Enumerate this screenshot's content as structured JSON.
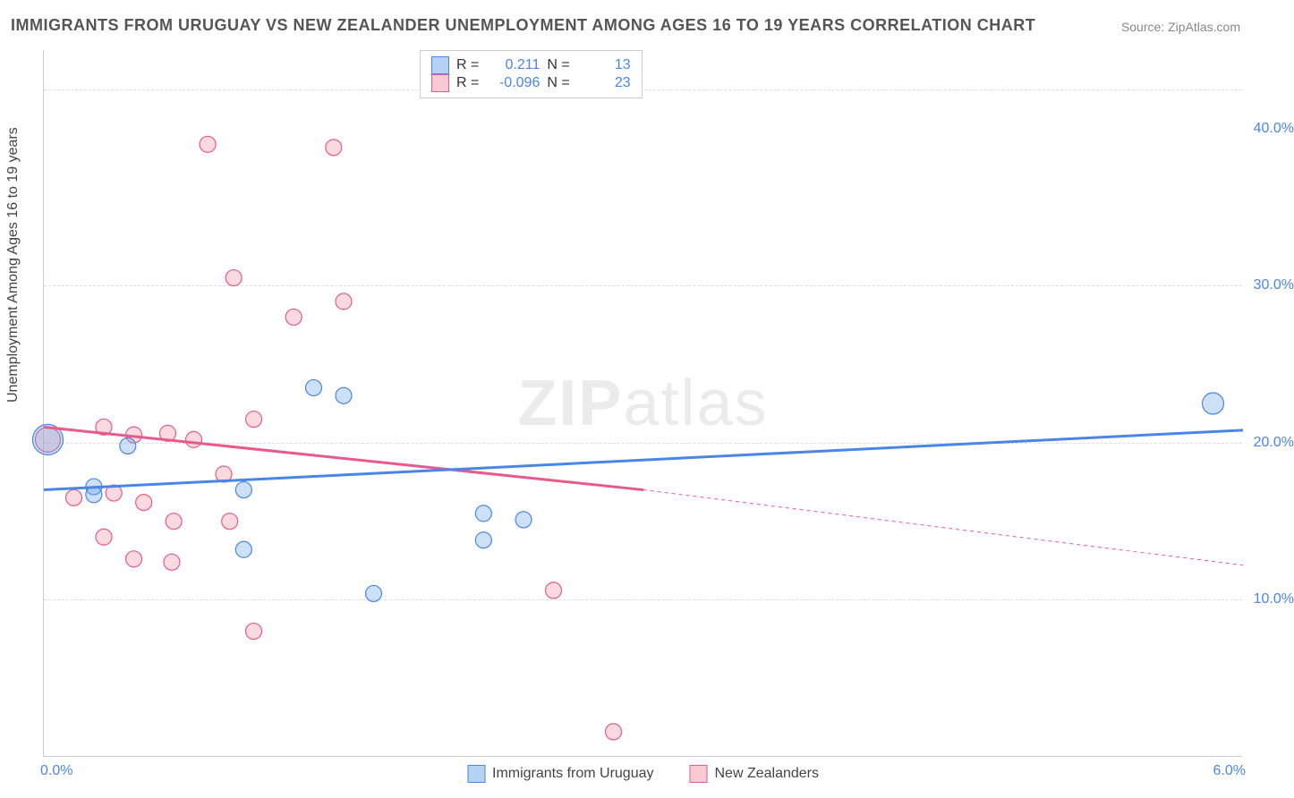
{
  "title": "IMMIGRANTS FROM URUGUAY VS NEW ZEALANDER UNEMPLOYMENT AMONG AGES 16 TO 19 YEARS CORRELATION CHART",
  "source": "Source: ZipAtlas.com",
  "watermark_a": "ZIP",
  "watermark_b": "atlas",
  "ylabel": "Unemployment Among Ages 16 to 19 years",
  "colors": {
    "blue_fill": "rgba(110,165,230,0.35)",
    "blue_stroke": "#4a86e8",
    "pink_fill": "rgba(240,150,170,0.35)",
    "pink_stroke": "#e85a8a",
    "grid": "#dddddd",
    "axis": "#cccccc",
    "text": "#555555"
  },
  "correlation": {
    "rows": [
      {
        "swatch": "blue",
        "r_label": "R =",
        "r_val": "0.211",
        "n_label": "N =",
        "n_val": "13"
      },
      {
        "swatch": "pink",
        "r_label": "R =",
        "r_val": "-0.096",
        "n_label": "N =",
        "n_val": "23"
      }
    ]
  },
  "legend": [
    {
      "swatch": "blue",
      "label": "Immigrants from Uruguay"
    },
    {
      "swatch": "pink",
      "label": "New Zealanders"
    }
  ],
  "chart": {
    "type": "scatter",
    "xlim": [
      0.0,
      6.0
    ],
    "ylim": [
      0.0,
      45.0
    ],
    "y_ticks": [
      10.0,
      20.0,
      30.0,
      40.0
    ],
    "y_tick_labels": [
      "10.0%",
      "20.0%",
      "30.0%",
      "40.0%"
    ],
    "y_gridlines": [
      10.0,
      20.0,
      30.0,
      42.5
    ],
    "x_ticks": [
      0.0,
      6.0
    ],
    "x_tick_labels": [
      "0.0%",
      "6.0%"
    ],
    "marker_radius": 9,
    "series": [
      {
        "name": "Immigrants from Uruguay",
        "color_fill": "rgba(110,165,230,0.35)",
        "color_stroke": "#4a86e8",
        "points": [
          {
            "x": 0.02,
            "y": 20.2,
            "r": 17
          },
          {
            "x": 0.42,
            "y": 19.8
          },
          {
            "x": 0.25,
            "y": 17.2
          },
          {
            "x": 0.25,
            "y": 16.7
          },
          {
            "x": 1.0,
            "y": 17.0
          },
          {
            "x": 1.0,
            "y": 13.2
          },
          {
            "x": 1.35,
            "y": 23.5
          },
          {
            "x": 1.5,
            "y": 23.0
          },
          {
            "x": 1.65,
            "y": 10.4
          },
          {
            "x": 2.2,
            "y": 15.5
          },
          {
            "x": 2.4,
            "y": 15.1
          },
          {
            "x": 2.2,
            "y": 13.8
          },
          {
            "x": 5.85,
            "y": 22.5,
            "r": 12
          }
        ],
        "trend": {
          "x1": 0.0,
          "y1": 17.0,
          "x2": 6.0,
          "y2": 20.8,
          "style": "solid",
          "width": 3
        }
      },
      {
        "name": "New Zealanders",
        "color_fill": "rgba(240,150,170,0.35)",
        "color_stroke": "#e85a8a",
        "points": [
          {
            "x": 0.02,
            "y": 20.2,
            "r": 14
          },
          {
            "x": 0.15,
            "y": 16.5
          },
          {
            "x": 0.3,
            "y": 21.0
          },
          {
            "x": 0.35,
            "y": 16.8
          },
          {
            "x": 0.3,
            "y": 14.0
          },
          {
            "x": 0.45,
            "y": 20.5
          },
          {
            "x": 0.5,
            "y": 16.2
          },
          {
            "x": 0.45,
            "y": 12.6
          },
          {
            "x": 0.65,
            "y": 15.0
          },
          {
            "x": 0.64,
            "y": 12.4
          },
          {
            "x": 0.75,
            "y": 20.2
          },
          {
            "x": 0.82,
            "y": 39.0
          },
          {
            "x": 0.9,
            "y": 18.0
          },
          {
            "x": 0.93,
            "y": 15.0
          },
          {
            "x": 0.95,
            "y": 30.5
          },
          {
            "x": 1.05,
            "y": 21.5
          },
          {
            "x": 1.05,
            "y": 8.0
          },
          {
            "x": 1.25,
            "y": 28.0
          },
          {
            "x": 1.45,
            "y": 38.8
          },
          {
            "x": 1.5,
            "y": 29.0
          },
          {
            "x": 2.55,
            "y": 10.6
          },
          {
            "x": 2.85,
            "y": 1.6
          },
          {
            "x": 0.62,
            "y": 20.6
          }
        ],
        "trend_solid": {
          "x1": 0.0,
          "y1": 21.0,
          "x2": 3.0,
          "y2": 17.0,
          "style": "solid",
          "width": 3
        },
        "trend_dash": {
          "x1": 3.0,
          "y1": 17.0,
          "x2": 6.0,
          "y2": 12.2,
          "style": "dashed",
          "width": 1
        }
      }
    ]
  }
}
